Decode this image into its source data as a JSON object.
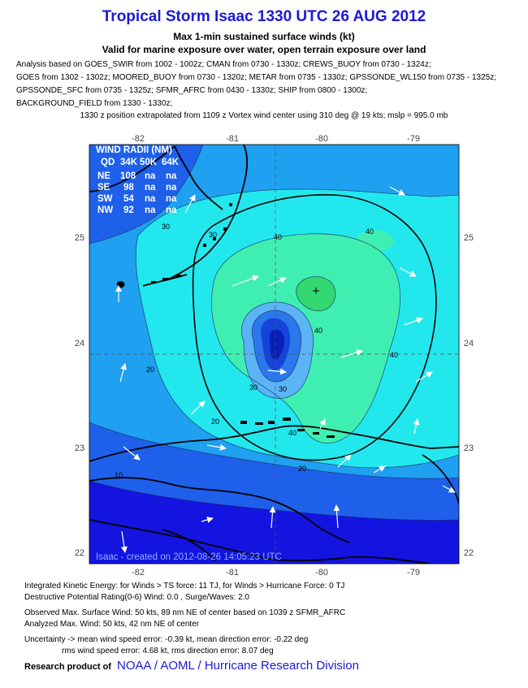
{
  "header": {
    "title": "Tropical Storm Isaac 1330 UTC 26 AUG 2012",
    "subtitle1": "Max 1-min sustained surface winds (kt)",
    "subtitle2": "Valid for marine exposure over water, open terrain exposure over land",
    "analysis_lines": [
      "Analysis based on GOES_SWIR from 1002 - 1002z; CMAN from 0730 - 1330z; CREWS_BUOY from 0730 - 1324z;",
      "GOES from 1302 - 1302z; MOORED_BUOY from 0730 - 1320z; METAR from 0735 - 1330z; GPSSONDE_WL150 from 0735 - 1325z;",
      "GPSSONDE_SFC from 0735 - 1325z; SFMR_AFRC from 0430 - 1330z; SHIP from 0800 - 1300z;",
      "BACKGROUND_FIELD from 1330 - 1330z;"
    ],
    "position_line": "1330 z position extrapolated from 1109 z Vortex wind center using 310 deg @ 19 kts; mslp = 995.0 mb"
  },
  "map": {
    "lon_labels": [
      "-82",
      "-81",
      "-80",
      "-79"
    ],
    "lat_labels": [
      "25",
      "24",
      "23",
      "22"
    ],
    "wind_radii": {
      "title": "WIND RADII (NM)",
      "header": [
        "QD",
        "34K",
        "50K",
        "64K"
      ],
      "rows": [
        [
          "NE",
          "108",
          "na",
          "na"
        ],
        [
          "SE",
          "98",
          "na",
          "na"
        ],
        [
          "SW",
          "54",
          "na",
          "na"
        ],
        [
          "NW",
          "92",
          "na",
          "na"
        ]
      ]
    },
    "contour_labels": [
      "30",
      "30",
      "40",
      "40",
      "40",
      "40",
      "30",
      "30",
      "20",
      "20",
      "20",
      "10",
      "40"
    ],
    "footer_credit": "Isaac - created on 2012-08-26 14:05:23 UTC",
    "colors": {
      "lt10": "#1414e0",
      "c10_20": "#1e60ea",
      "c20_30": "#1fa0f0",
      "c30_40": "#22e8ee",
      "c40_50": "#3fefb2",
      "c50_60": "#33d870",
      "core1": "#5ab4f6",
      "core2": "#2a78ec",
      "core3": "#1444d8",
      "core4": "#0a1eb8"
    }
  },
  "footer": {
    "ike": "Integrated Kinetic Energy: for Winds > TS force: 11 TJ, for Winds > Hurricane Force: 0 TJ",
    "dpr": "Destructive Potential Rating(0-6)   Wind: 0.0 , Surge/Waves: 2.0",
    "obs_max": "Observed Max. Surface Wind: 50 kts, 89 nm NE of center based on 1039 z SFMR_AFRC",
    "analyzed_max": "Analyzed Max. Wind: 50 kts, 42 nm  NE of center",
    "uncertainty1": "Uncertainty -> mean wind speed error:  -0.39 kt, mean direction error:  -0.22 deg",
    "uncertainty2": "rms wind speed error: 4.68 kt, rms direction error: 8.07 deg",
    "research_label": "Research product of",
    "research_org": "NOAA / AOML / Hurricane Research Division"
  }
}
